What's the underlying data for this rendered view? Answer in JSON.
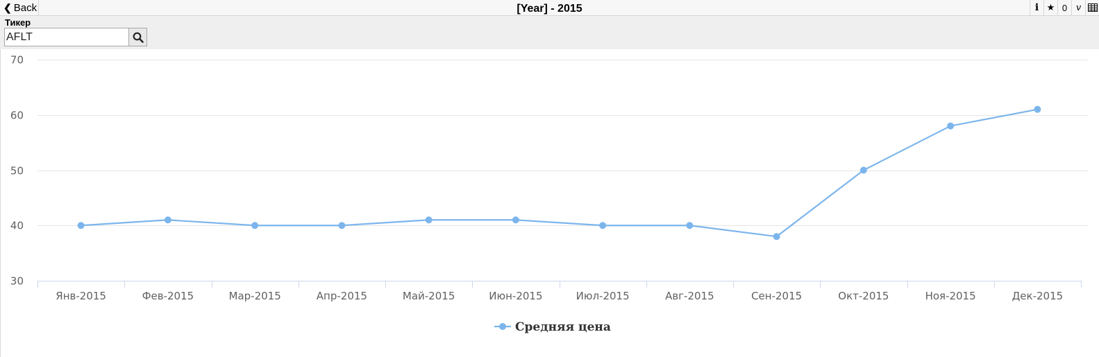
{
  "toolbar": {
    "back_label": "Back",
    "title": "[Year] - 2015",
    "info_label": "i",
    "count": "0",
    "v_label": "v"
  },
  "filter": {
    "label": "Тикер",
    "value": "AFLT"
  },
  "colors": {
    "series": "#7cb5ec",
    "grid": "#e6e6e6",
    "axis": "#ccd6eb"
  },
  "icons": {
    "back": "chevron-left-icon",
    "info": "info-icon",
    "favorite": "star-icon",
    "table": "table-icon",
    "search": "search-icon"
  },
  "chart_data": {
    "type": "line",
    "categories": [
      "Янв-2015",
      "Фев-2015",
      "Мар-2015",
      "Апр-2015",
      "Май-2015",
      "Июн-2015",
      "Июл-2015",
      "Авг-2015",
      "Сен-2015",
      "Окт-2015",
      "Ноя-2015",
      "Дек-2015"
    ],
    "series": [
      {
        "name": "Средняя цена",
        "values": [
          40,
          41,
          40,
          40,
          41,
          41,
          40,
          40,
          38,
          50,
          58,
          61
        ]
      }
    ],
    "yticks": [
      30,
      40,
      50,
      60,
      70
    ],
    "ylim": [
      30,
      70
    ],
    "grid": true,
    "legend": "bottom-center"
  }
}
